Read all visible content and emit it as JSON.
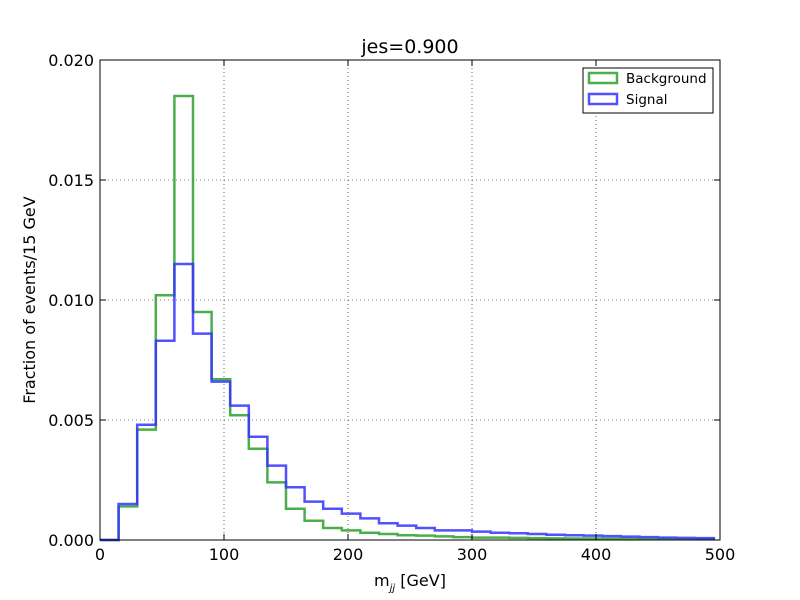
{
  "chart_data": {
    "type": "histogram",
    "title": "jes=0.900",
    "xlabel": {
      "main": "m",
      "sub": "jj",
      "unit": " [GeV]"
    },
    "ylabel": "Fraction of events/15 GeV",
    "xlim": [
      0,
      500
    ],
    "ylim": [
      0,
      0.02
    ],
    "xticks": [
      0,
      100,
      200,
      300,
      400,
      500
    ],
    "xtick_labels": [
      "0",
      "100",
      "200",
      "300",
      "400",
      "500"
    ],
    "yticks": [
      0,
      0.005,
      0.01,
      0.015,
      0.02
    ],
    "ytick_labels": [
      "0.000",
      "0.005",
      "0.010",
      "0.015",
      "0.020"
    ],
    "grid": true,
    "legend_position": "top-right",
    "bin_edges": [
      0,
      15,
      30,
      45,
      60,
      75,
      90,
      105,
      120,
      135,
      150,
      165,
      180,
      195,
      210,
      225,
      240,
      255,
      270,
      285,
      300,
      315,
      330,
      345,
      360,
      375,
      390,
      405,
      420,
      435,
      450,
      465,
      480,
      495
    ],
    "series": [
      {
        "name": "Background",
        "color": "#2ca02c",
        "values": [
          0.0,
          0.0014,
          0.0046,
          0.0102,
          0.0185,
          0.0095,
          0.0067,
          0.0052,
          0.0038,
          0.0024,
          0.0013,
          0.0008,
          0.0005,
          0.0004,
          0.0003,
          0.00025,
          0.0002,
          0.00018,
          0.00015,
          0.00012,
          0.0001,
          0.0001,
          9e-05,
          8e-05,
          7e-05,
          6e-05,
          6e-05,
          5e-05,
          5e-05,
          4e-05,
          4e-05,
          3e-05,
          3e-05
        ]
      },
      {
        "name": "Signal",
        "color": "#3333ff",
        "values": [
          0.0,
          0.0015,
          0.0048,
          0.0083,
          0.0115,
          0.0086,
          0.0066,
          0.0056,
          0.0043,
          0.0031,
          0.0022,
          0.0016,
          0.0013,
          0.0011,
          0.0009,
          0.0007,
          0.0006,
          0.0005,
          0.0004,
          0.0004,
          0.00035,
          0.0003,
          0.00028,
          0.00025,
          0.00022,
          0.0002,
          0.00018,
          0.00016,
          0.00014,
          0.00012,
          0.0001,
          9e-05,
          8e-05
        ]
      }
    ]
  }
}
